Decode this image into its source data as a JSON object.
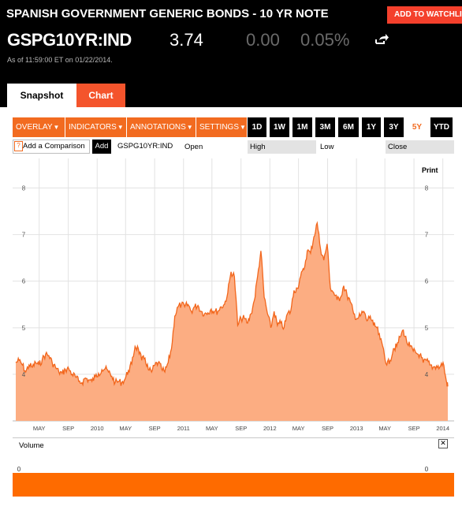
{
  "header": {
    "title": "SPANISH GOVERNMENT GENERIC BONDS - 10 YR NOTE",
    "watchlist_button": "ADD TO WATCHLIST",
    "ticker": "GSPG10YR:IND",
    "price": "3.74",
    "change": "0.00",
    "change_pct": "0.05%",
    "timestamp": "As of 11:59:00 ET on 01/22/2014."
  },
  "tabs": [
    {
      "label": "Snapshot",
      "active": false
    },
    {
      "label": "Chart",
      "active": true
    }
  ],
  "toolbar": {
    "dropdowns": [
      "OVERLAY",
      "INDICATORS",
      "ANNOTATIONS",
      "SETTINGS"
    ],
    "ranges": [
      "1D",
      "1W",
      "1M",
      "3M",
      "6M",
      "1Y",
      "3Y",
      "5Y",
      "YTD"
    ],
    "active_range": "5Y"
  },
  "compare": {
    "help": "?",
    "placeholder": "Add a Comparison",
    "add_button": "Add",
    "symbol": "GSPG10YR:IND",
    "fields": [
      "Open",
      "High",
      "Low",
      "Close"
    ]
  },
  "print_label": "Print",
  "volume": {
    "label": "Volume",
    "close": "✕",
    "axis_value": "0"
  },
  "colors": {
    "accent": "#f26b20",
    "area_fill": "#fcad82",
    "line": "#f2661c",
    "header_bg": "#000000"
  },
  "chart_data": {
    "type": "area",
    "series": [
      {
        "x": [
          "2009-01-22",
          "2009-02-05",
          "2009-02-19",
          "2009-03-05",
          "2009-03-19",
          "2009-04-02",
          "2009-04-16",
          "2009-04-30",
          "2009-05-14",
          "2009-05-28",
          "2009-06-11",
          "2009-06-25",
          "2009-07-09",
          "2009-07-23",
          "2009-08-06",
          "2009-08-20",
          "2009-09-03",
          "2009-09-17",
          "2009-10-01",
          "2009-10-15",
          "2009-10-29",
          "2009-11-12",
          "2009-11-26",
          "2009-12-10",
          "2009-12-24",
          "2010-01-07",
          "2010-01-21",
          "2010-02-04",
          "2010-02-18",
          "2010-03-04",
          "2010-03-18",
          "2010-04-01",
          "2010-04-15",
          "2010-04-29",
          "2010-05-13",
          "2010-05-27",
          "2010-06-10",
          "2010-06-24",
          "2010-07-08",
          "2010-07-22",
          "2010-08-05",
          "2010-08-19",
          "2010-09-02",
          "2010-09-16",
          "2010-09-30",
          "2010-10-14",
          "2010-10-28",
          "2010-11-11",
          "2010-11-25",
          "2010-12-09",
          "2010-12-23",
          "2011-01-06",
          "2011-01-20",
          "2011-02-03",
          "2011-02-17",
          "2011-03-03",
          "2011-03-17",
          "2011-03-31",
          "2011-04-14",
          "2011-04-28",
          "2011-05-12",
          "2011-05-26",
          "2011-06-09",
          "2011-06-23",
          "2011-07-07",
          "2011-07-21",
          "2011-08-04",
          "2011-08-18",
          "2011-09-01",
          "2011-09-15",
          "2011-09-29",
          "2011-10-13",
          "2011-10-27",
          "2011-11-10",
          "2011-11-24",
          "2011-12-08",
          "2011-12-22",
          "2012-01-05",
          "2012-01-19",
          "2012-02-02",
          "2012-02-16",
          "2012-03-01",
          "2012-03-15",
          "2012-03-29",
          "2012-04-12",
          "2012-04-26",
          "2012-05-10",
          "2012-05-24",
          "2012-06-07",
          "2012-06-21",
          "2012-07-05",
          "2012-07-19",
          "2012-08-02",
          "2012-08-16",
          "2012-08-30",
          "2012-09-13",
          "2012-09-27",
          "2012-10-11",
          "2012-10-25",
          "2012-11-08",
          "2012-11-22",
          "2012-12-06",
          "2012-12-20",
          "2013-01-03",
          "2013-01-17",
          "2013-01-31",
          "2013-02-14",
          "2013-02-28",
          "2013-03-14",
          "2013-03-28",
          "2013-04-11",
          "2013-04-25",
          "2013-05-09",
          "2013-05-23",
          "2013-06-06",
          "2013-06-20",
          "2013-07-04",
          "2013-07-18",
          "2013-08-01",
          "2013-08-15",
          "2013-08-29",
          "2013-09-12",
          "2013-09-26",
          "2013-10-10",
          "2013-10-24",
          "2013-11-07",
          "2013-11-21",
          "2013-12-05",
          "2013-12-19",
          "2014-01-02",
          "2014-01-16",
          "2014-01-22"
        ],
        "values": [
          4.25,
          4.3,
          4.2,
          4.05,
          4.2,
          4.15,
          4.25,
          4.2,
          4.32,
          4.43,
          4.4,
          4.25,
          4.15,
          4.05,
          4.02,
          4.1,
          4.12,
          4.0,
          3.95,
          3.85,
          3.82,
          3.92,
          3.88,
          3.85,
          3.95,
          4.02,
          4.1,
          4.12,
          4.05,
          3.96,
          3.82,
          3.85,
          3.82,
          3.9,
          4.08,
          4.22,
          4.6,
          4.55,
          4.3,
          4.35,
          4.1,
          4.05,
          4.2,
          4.25,
          4.12,
          4.05,
          4.25,
          4.55,
          5.25,
          5.45,
          5.5,
          5.45,
          5.5,
          5.35,
          5.45,
          5.48,
          5.35,
          5.3,
          5.32,
          5.4,
          5.35,
          5.35,
          5.45,
          5.5,
          5.75,
          6.2,
          6.1,
          5.05,
          5.2,
          5.2,
          5.1,
          5.3,
          5.58,
          6.1,
          6.65,
          5.65,
          5.3,
          5.0,
          5.35,
          5.05,
          5.1,
          5.0,
          5.3,
          5.35,
          5.8,
          5.85,
          6.1,
          6.25,
          6.65,
          6.6,
          6.95,
          7.25,
          6.7,
          6.45,
          6.8,
          5.85,
          5.75,
          5.6,
          5.65,
          5.9,
          5.7,
          5.55,
          5.3,
          5.2,
          5.25,
          5.35,
          5.15,
          5.25,
          5.05,
          5.0,
          4.75,
          4.55,
          4.2,
          4.3,
          4.55,
          4.6,
          4.8,
          4.95,
          4.7,
          4.6,
          4.5,
          4.45,
          4.42,
          4.25,
          4.3,
          4.2,
          4.15,
          4.18,
          4.15,
          4.25,
          3.85,
          3.74
        ]
      }
    ],
    "y_ticks": [
      4,
      5,
      6,
      7,
      8
    ],
    "ylim": [
      3.0,
      8.5
    ],
    "x_ticks": [
      "MAY",
      "SEP",
      "2010",
      "MAY",
      "SEP",
      "2011",
      "MAY",
      "SEP",
      "2012",
      "MAY",
      "SEP",
      "2013",
      "MAY",
      "SEP",
      "2014"
    ],
    "grid": true,
    "legend": "none"
  }
}
